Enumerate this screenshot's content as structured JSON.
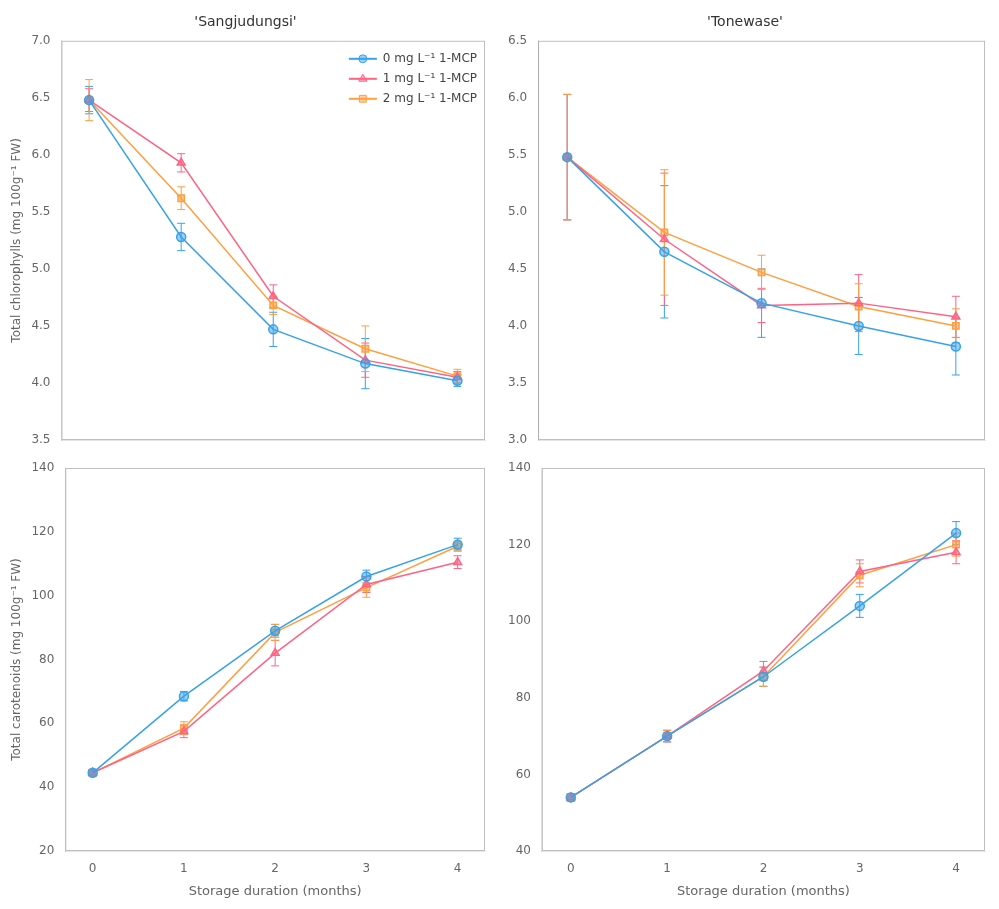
{
  "chart_data": [
    {
      "type": "line",
      "title": "'Sangjudungsi'",
      "y_label": "Total chlorophylls (mg 100g⁻¹ FW)",
      "x": [
        0,
        1,
        2,
        3,
        4
      ],
      "series": [
        {
          "name": "0 mg L⁻¹ 1-MCP",
          "marker": "circle",
          "values": [
            6.48,
            5.28,
            4.47,
            4.17,
            4.02
          ],
          "errors": [
            0.12,
            0.12,
            0.15,
            0.22,
            0.05
          ]
        },
        {
          "name": "1 mg L⁻¹ 1-MCP",
          "marker": "triangle",
          "values": [
            6.48,
            5.93,
            4.76,
            4.2,
            4.05
          ],
          "errors": [
            0.1,
            0.08,
            0.1,
            0.15,
            0.05
          ]
        },
        {
          "name": "2 mg L⁻¹ 1-MCP",
          "marker": "square",
          "values": [
            6.48,
            5.62,
            4.68,
            4.3,
            4.06
          ],
          "errors": [
            0.18,
            0.1,
            0.08,
            0.2,
            0.06
          ]
        }
      ],
      "xlim": [
        -0.3,
        4.3
      ],
      "xticks": [
        0,
        1,
        2,
        3,
        4
      ],
      "ylim": [
        3.5,
        7.0
      ],
      "yticks": [
        3.5,
        {
          "value": 4,
          "label": "4.0"
        },
        4.5,
        {
          "value": 5,
          "label": "5.0"
        },
        5.5,
        {
          "value": 6,
          "label": "6.0"
        },
        6.5,
        {
          "value": 7,
          "label": "7.0"
        }
      ],
      "legend": "upper right",
      "grid": false,
      "tick_labels": "y"
    },
    {
      "type": "line",
      "title": "'Tonewase'",
      "x": [
        0,
        1,
        2,
        3,
        4
      ],
      "series": [
        {
          "name": "0 mg L⁻¹ 1-MCP",
          "marker": "circle",
          "values": [
            5.48,
            4.65,
            4.2,
            4.0,
            3.82
          ],
          "errors": [
            0.55,
            0.58,
            0.3,
            0.25,
            0.25
          ]
        },
        {
          "name": "1 mg L⁻¹ 1-MCP",
          "marker": "triangle",
          "values": [
            5.48,
            4.76,
            4.18,
            4.2,
            4.08
          ],
          "errors": [
            0.55,
            0.58,
            0.15,
            0.25,
            0.18
          ]
        },
        {
          "name": "2 mg L⁻¹ 1-MCP",
          "marker": "square",
          "values": [
            5.48,
            4.82,
            4.47,
            4.17,
            4.0
          ],
          "errors": [
            0.55,
            0.55,
            0.15,
            0.2,
            0.15
          ]
        }
      ],
      "xlim": [
        -0.3,
        4.3
      ],
      "xticks": [
        0,
        1,
        2,
        3,
        4
      ],
      "ylim": [
        3.0,
        6.5
      ],
      "yticks": [
        {
          "value": 3,
          "label": "3.0"
        },
        3.5,
        {
          "value": 4,
          "label": "4.0"
        },
        4.5,
        {
          "value": 5,
          "label": "5.0"
        },
        5.5,
        {
          "value": 6,
          "label": "6.0"
        },
        6.5
      ],
      "grid": false,
      "tick_labels": "y"
    },
    {
      "type": "line",
      "x_label": "Storage duration (months)",
      "y_label": "Total carotenoids (mg 100g⁻¹ FW)",
      "x": [
        0,
        1,
        2,
        3,
        4
      ],
      "series": [
        {
          "name": "0 mg L⁻¹ 1-MCP",
          "marker": "circle",
          "values": [
            44.5,
            68.5,
            89.0,
            106.0,
            116.0
          ],
          "errors": [
            1.0,
            1.5,
            2.0,
            2.0,
            2.0
          ]
        },
        {
          "name": "1 mg L⁻¹ 1-MCP",
          "marker": "triangle",
          "values": [
            44.5,
            57.5,
            82.0,
            103.5,
            110.5
          ],
          "errors": [
            1.0,
            2.0,
            4.0,
            2.5,
            2.0
          ]
        },
        {
          "name": "2 mg L⁻¹ 1-MCP",
          "marker": "square",
          "values": [
            44.5,
            58.5,
            88.5,
            102.5,
            115.5
          ],
          "errors": [
            1.0,
            2.0,
            2.5,
            3.0,
            1.5
          ]
        }
      ],
      "xlim": [
        -0.3,
        4.3
      ],
      "xticks": [
        0,
        1,
        2,
        3,
        4
      ],
      "ylim": [
        20,
        140
      ],
      "yticks": [
        20,
        40,
        60,
        80,
        100,
        120,
        140
      ],
      "grid": false
    },
    {
      "type": "line",
      "x_label": "Storage duration (months)",
      "x": [
        0,
        1,
        2,
        3,
        4
      ],
      "series": [
        {
          "name": "0 mg L⁻¹ 1-MCP",
          "marker": "circle",
          "values": [
            54.0,
            70.0,
            85.5,
            104.0,
            123.0
          ],
          "errors": [
            1.0,
            1.5,
            2.5,
            3.0,
            3.0
          ]
        },
        {
          "name": "1 mg L⁻¹ 1-MCP",
          "marker": "triangle",
          "values": [
            54.0,
            70.0,
            87.0,
            113.0,
            118.0
          ],
          "errors": [
            1.0,
            1.5,
            2.5,
            3.0,
            3.0
          ]
        },
        {
          "name": "2 mg L⁻¹ 1-MCP",
          "marker": "square",
          "values": [
            54.0,
            70.0,
            85.5,
            112.0,
            120.0
          ],
          "errors": [
            1.0,
            1.5,
            2.5,
            3.0,
            3.0
          ]
        }
      ],
      "xlim": [
        -0.3,
        4.3
      ],
      "xticks": [
        0,
        1,
        2,
        3,
        4
      ],
      "ylim": [
        40,
        140
      ],
      "yticks": [
        40,
        60,
        80,
        100,
        120,
        140
      ],
      "grid": false
    }
  ]
}
